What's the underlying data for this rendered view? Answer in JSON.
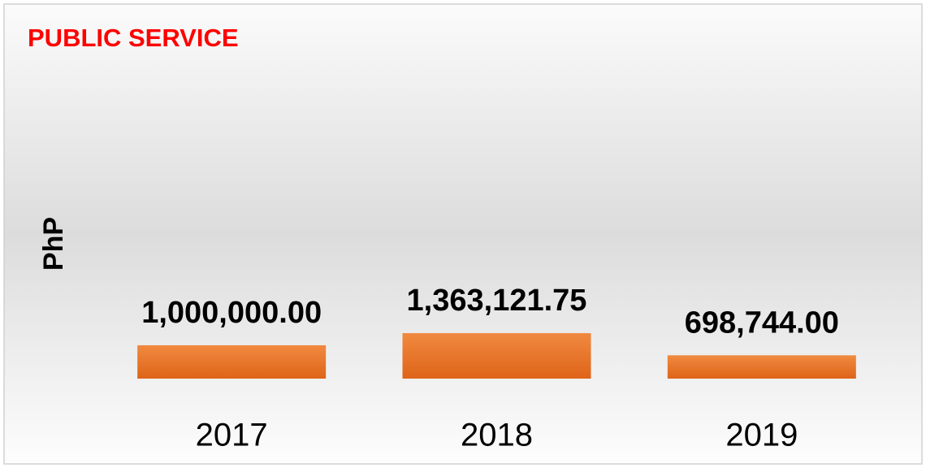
{
  "chart_data": {
    "type": "bar",
    "title": "PUBLIC SERVICE",
    "y_label": "PhP",
    "categories": [
      "2017",
      "2018",
      "2019"
    ],
    "values": [
      1000000,
      1363121.75,
      698744
    ],
    "value_labels": [
      "1,000,000.00",
      "1,363,121.75",
      "698,744.00"
    ],
    "color": "#e8732c",
    "ylim": [
      0,
      9400000
    ]
  }
}
